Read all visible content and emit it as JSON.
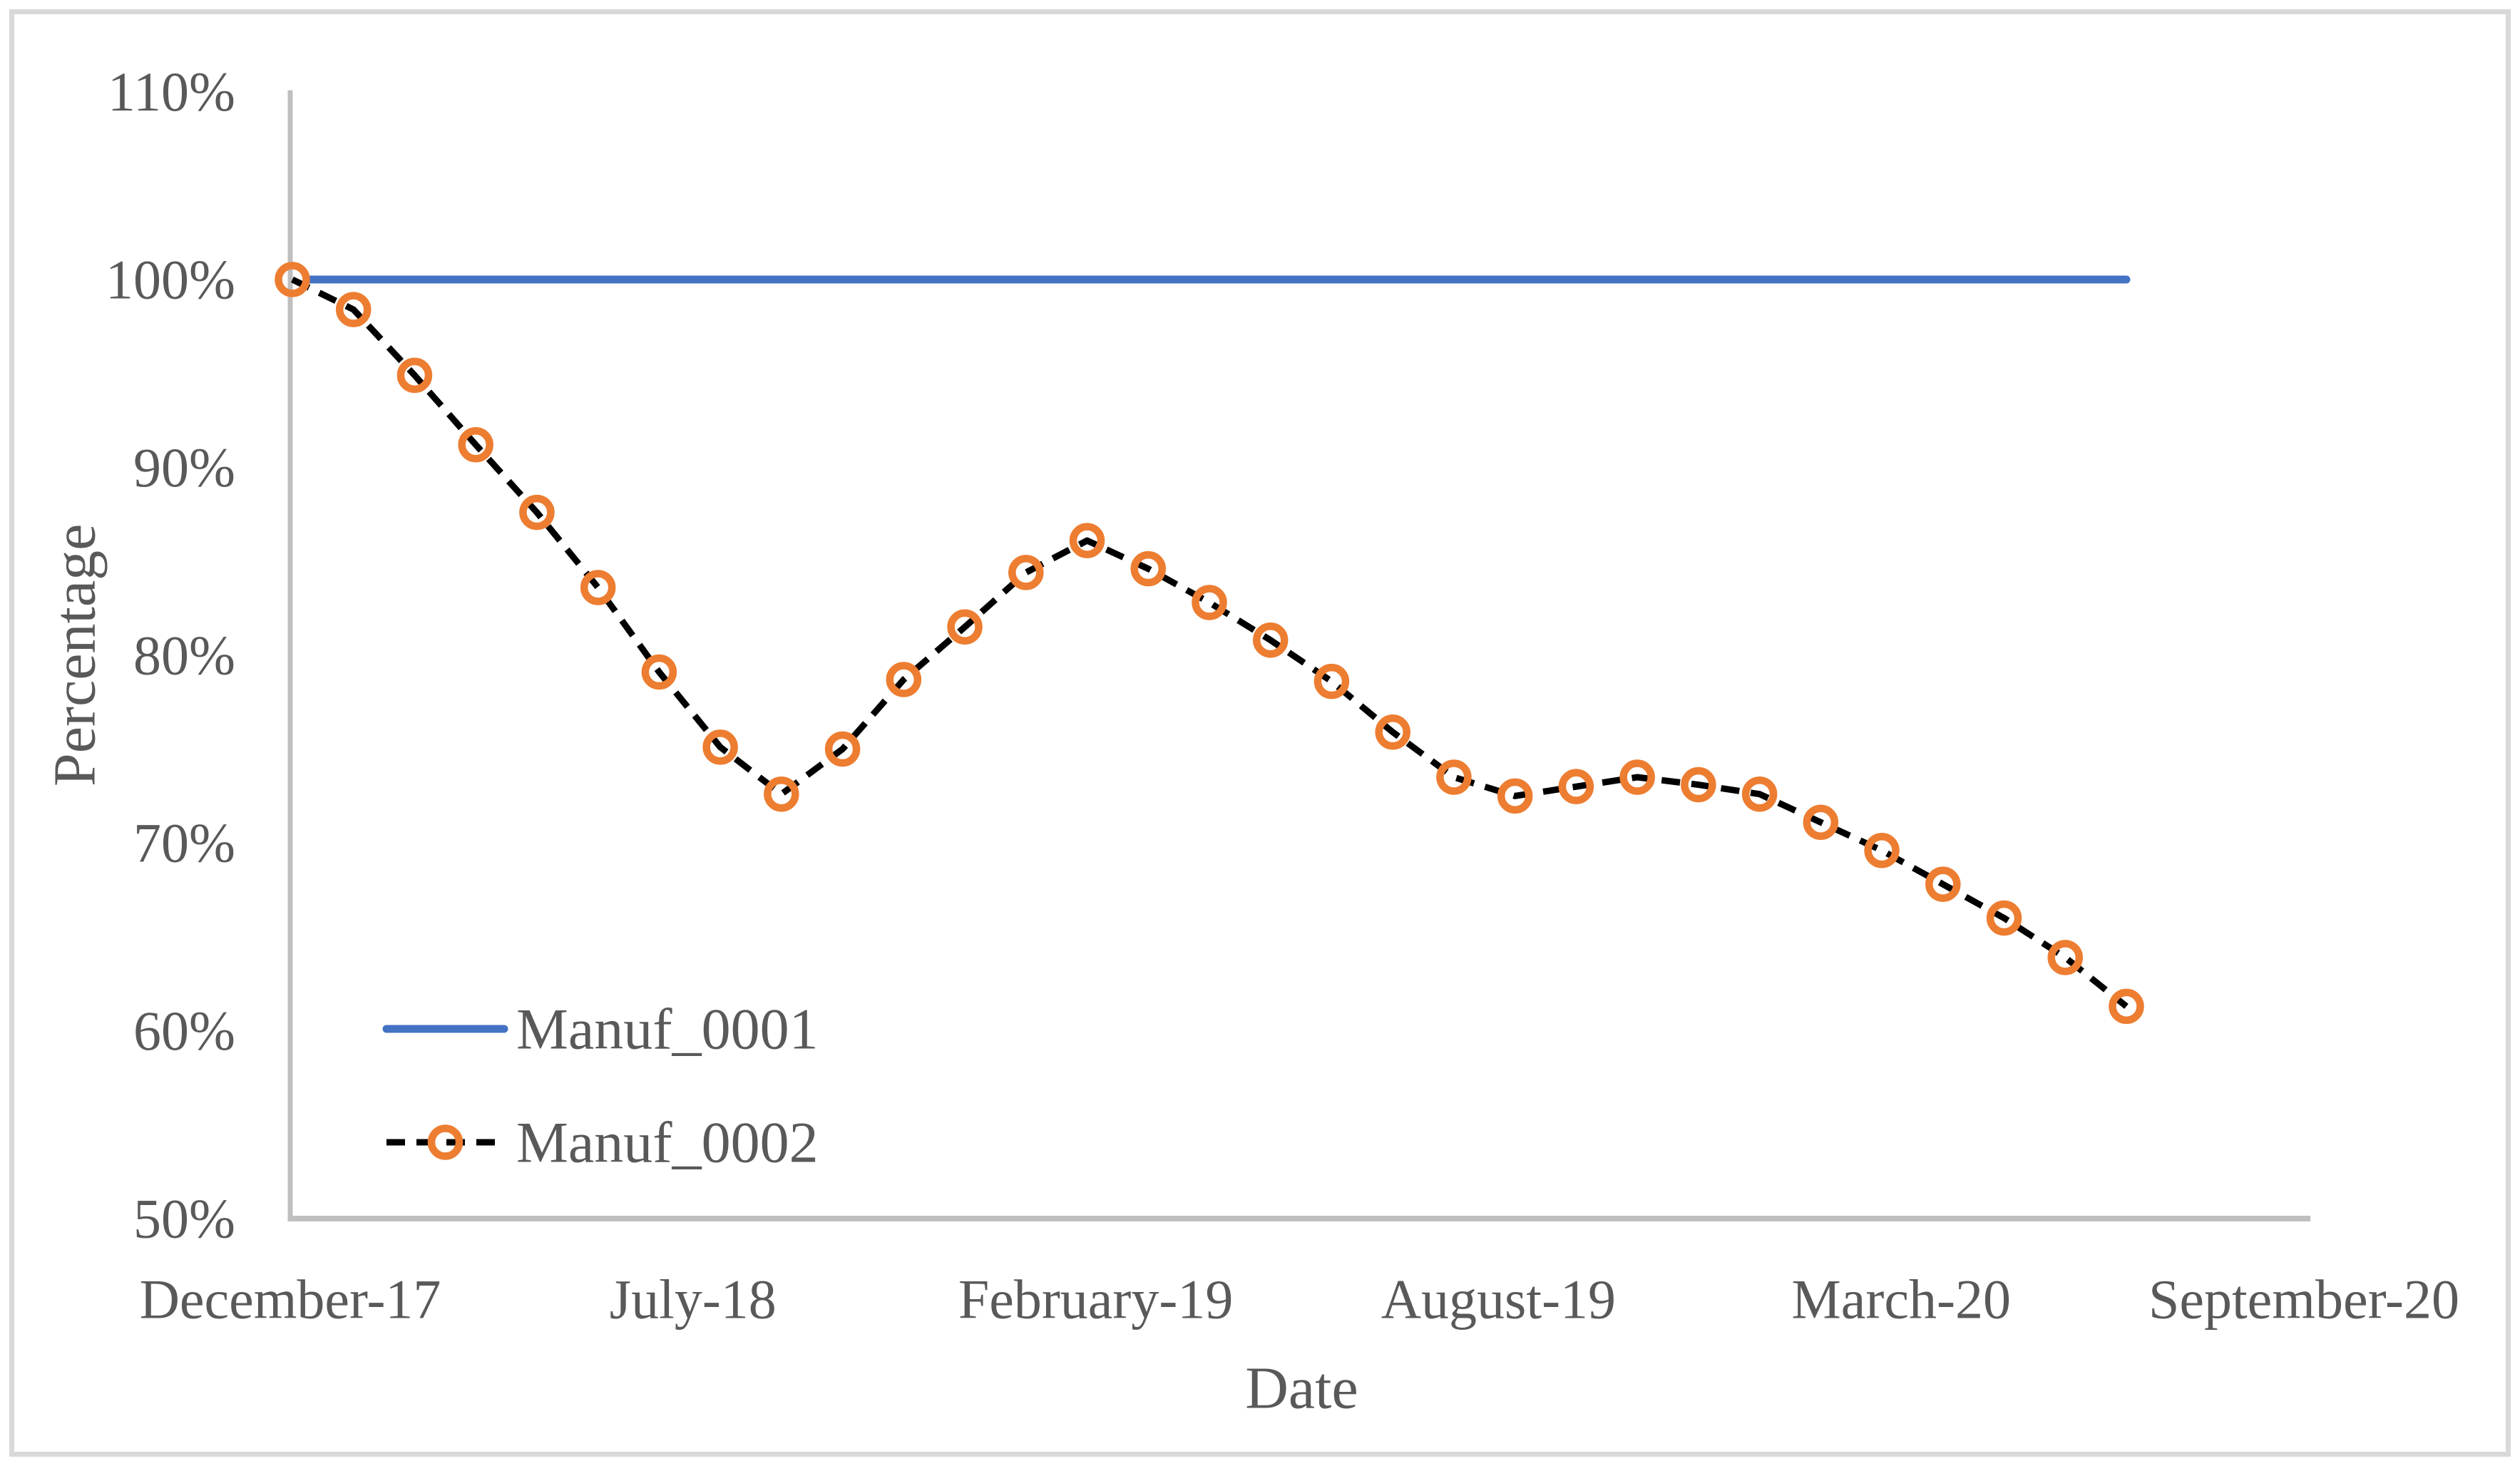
{
  "figure": {
    "background": "#FFFFFF",
    "border_color": "#D9D9D9"
  },
  "chart_data": {
    "type": "line",
    "title": "",
    "xlabel": "Date",
    "ylabel": "Percentage",
    "ylim": [
      50,
      110
    ],
    "ytick_values": [
      110,
      100,
      90,
      80,
      70,
      60,
      50
    ],
    "ytick_labels": [
      "110%",
      "100%",
      "90%",
      "80%",
      "70%",
      "60%",
      "50%"
    ],
    "xtick_labels": [
      "December-17",
      "July-18",
      "February-19",
      "August-19",
      "March-20",
      "September-20"
    ],
    "grid": false,
    "legend_position": "inside-lower-left",
    "axis_color": "#BFBFBF",
    "text_color": "#595959",
    "categories": [
      "Dec-2017",
      "Jan-2018",
      "Feb-2018",
      "Mar-2018",
      "Apr-2018",
      "May-2018",
      "Jun-2018",
      "Jul-2018",
      "Aug-2018",
      "Sep-2018",
      "Oct-2018",
      "Nov-2018",
      "Dec-2018",
      "Jan-2019",
      "Feb-2019",
      "Mar-2019",
      "Apr-2019",
      "May-2019",
      "Jun-2019",
      "Jul-2019",
      "Aug-2019",
      "Sep-2019",
      "Oct-2019",
      "Nov-2019",
      "Dec-2019",
      "Jan-2020",
      "Feb-2020",
      "Mar-2020",
      "Apr-2020",
      "May-2020",
      "Jun-2020"
    ],
    "series": [
      {
        "name": "Manuf_0001",
        "style": "solid",
        "color": "#4472C4",
        "marker": "none",
        "values": [
          100,
          100,
          100,
          100,
          100,
          100,
          100,
          100,
          100,
          100,
          100,
          100,
          100,
          100,
          100,
          100,
          100,
          100,
          100,
          100,
          100,
          100,
          100,
          100,
          100,
          100,
          100,
          100,
          100,
          100,
          100
        ]
      },
      {
        "name": "Manuf_0002",
        "style": "dashed",
        "color": "#000000",
        "marker": "circle",
        "marker_color": "#ED7D31",
        "values": [
          100,
          98.4,
          94.9,
          91.2,
          87.6,
          83.6,
          79.1,
          75.1,
          72.6,
          75.0,
          78.7,
          81.5,
          84.4,
          86.1,
          84.6,
          82.8,
          80.8,
          78.6,
          75.9,
          73.5,
          72.5,
          73.0,
          73.5,
          73.1,
          72.6,
          71.1,
          69.6,
          67.8,
          66.0,
          63.9,
          61.3
        ]
      }
    ]
  }
}
